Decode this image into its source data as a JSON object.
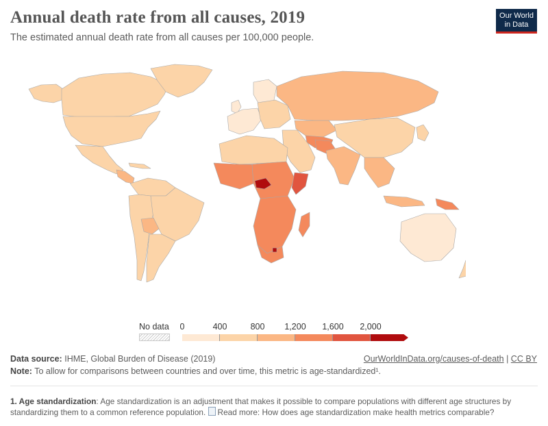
{
  "header": {
    "title": "Annual death rate from all causes, 2019",
    "subtitle": "The estimated annual death rate from all causes per 100,000 people."
  },
  "logo": {
    "line1": "Our World",
    "line2": "in Data"
  },
  "legend": {
    "no_data_label": "No data",
    "ticks": [
      "0",
      "400",
      "800",
      "1,200",
      "1,600",
      "2,000"
    ],
    "colors": [
      "#fee9d4",
      "#fcd4a8",
      "#fbb784",
      "#f4895c",
      "#e1553f",
      "#b00c0e"
    ]
  },
  "map": {
    "colors": {
      "very_low": "#fee9d4",
      "low": "#fcd4a8",
      "medium": "#fbb784",
      "high": "#f4895c",
      "very_high": "#e1553f",
      "extreme": "#b00c0e",
      "border": "#a8a8a8"
    }
  },
  "footer": {
    "source_label": "Data source:",
    "source_text": "IHME, Global Burden of Disease (2019)",
    "link_text": "OurWorldInData.org/causes-of-death",
    "separator": "|",
    "license": "CC BY",
    "note_label": "Note:",
    "note_text": "To allow for comparisons between countries and over time, this metric is age-standardized¹."
  },
  "footnote": {
    "label": "1. Age standardization",
    "text": ": Age standardization is an adjustment that makes it possible to compare populations with different age structures by standardizing them to a common reference population.",
    "read_more": "Read more: How does age standardization make health metrics comparable?"
  }
}
